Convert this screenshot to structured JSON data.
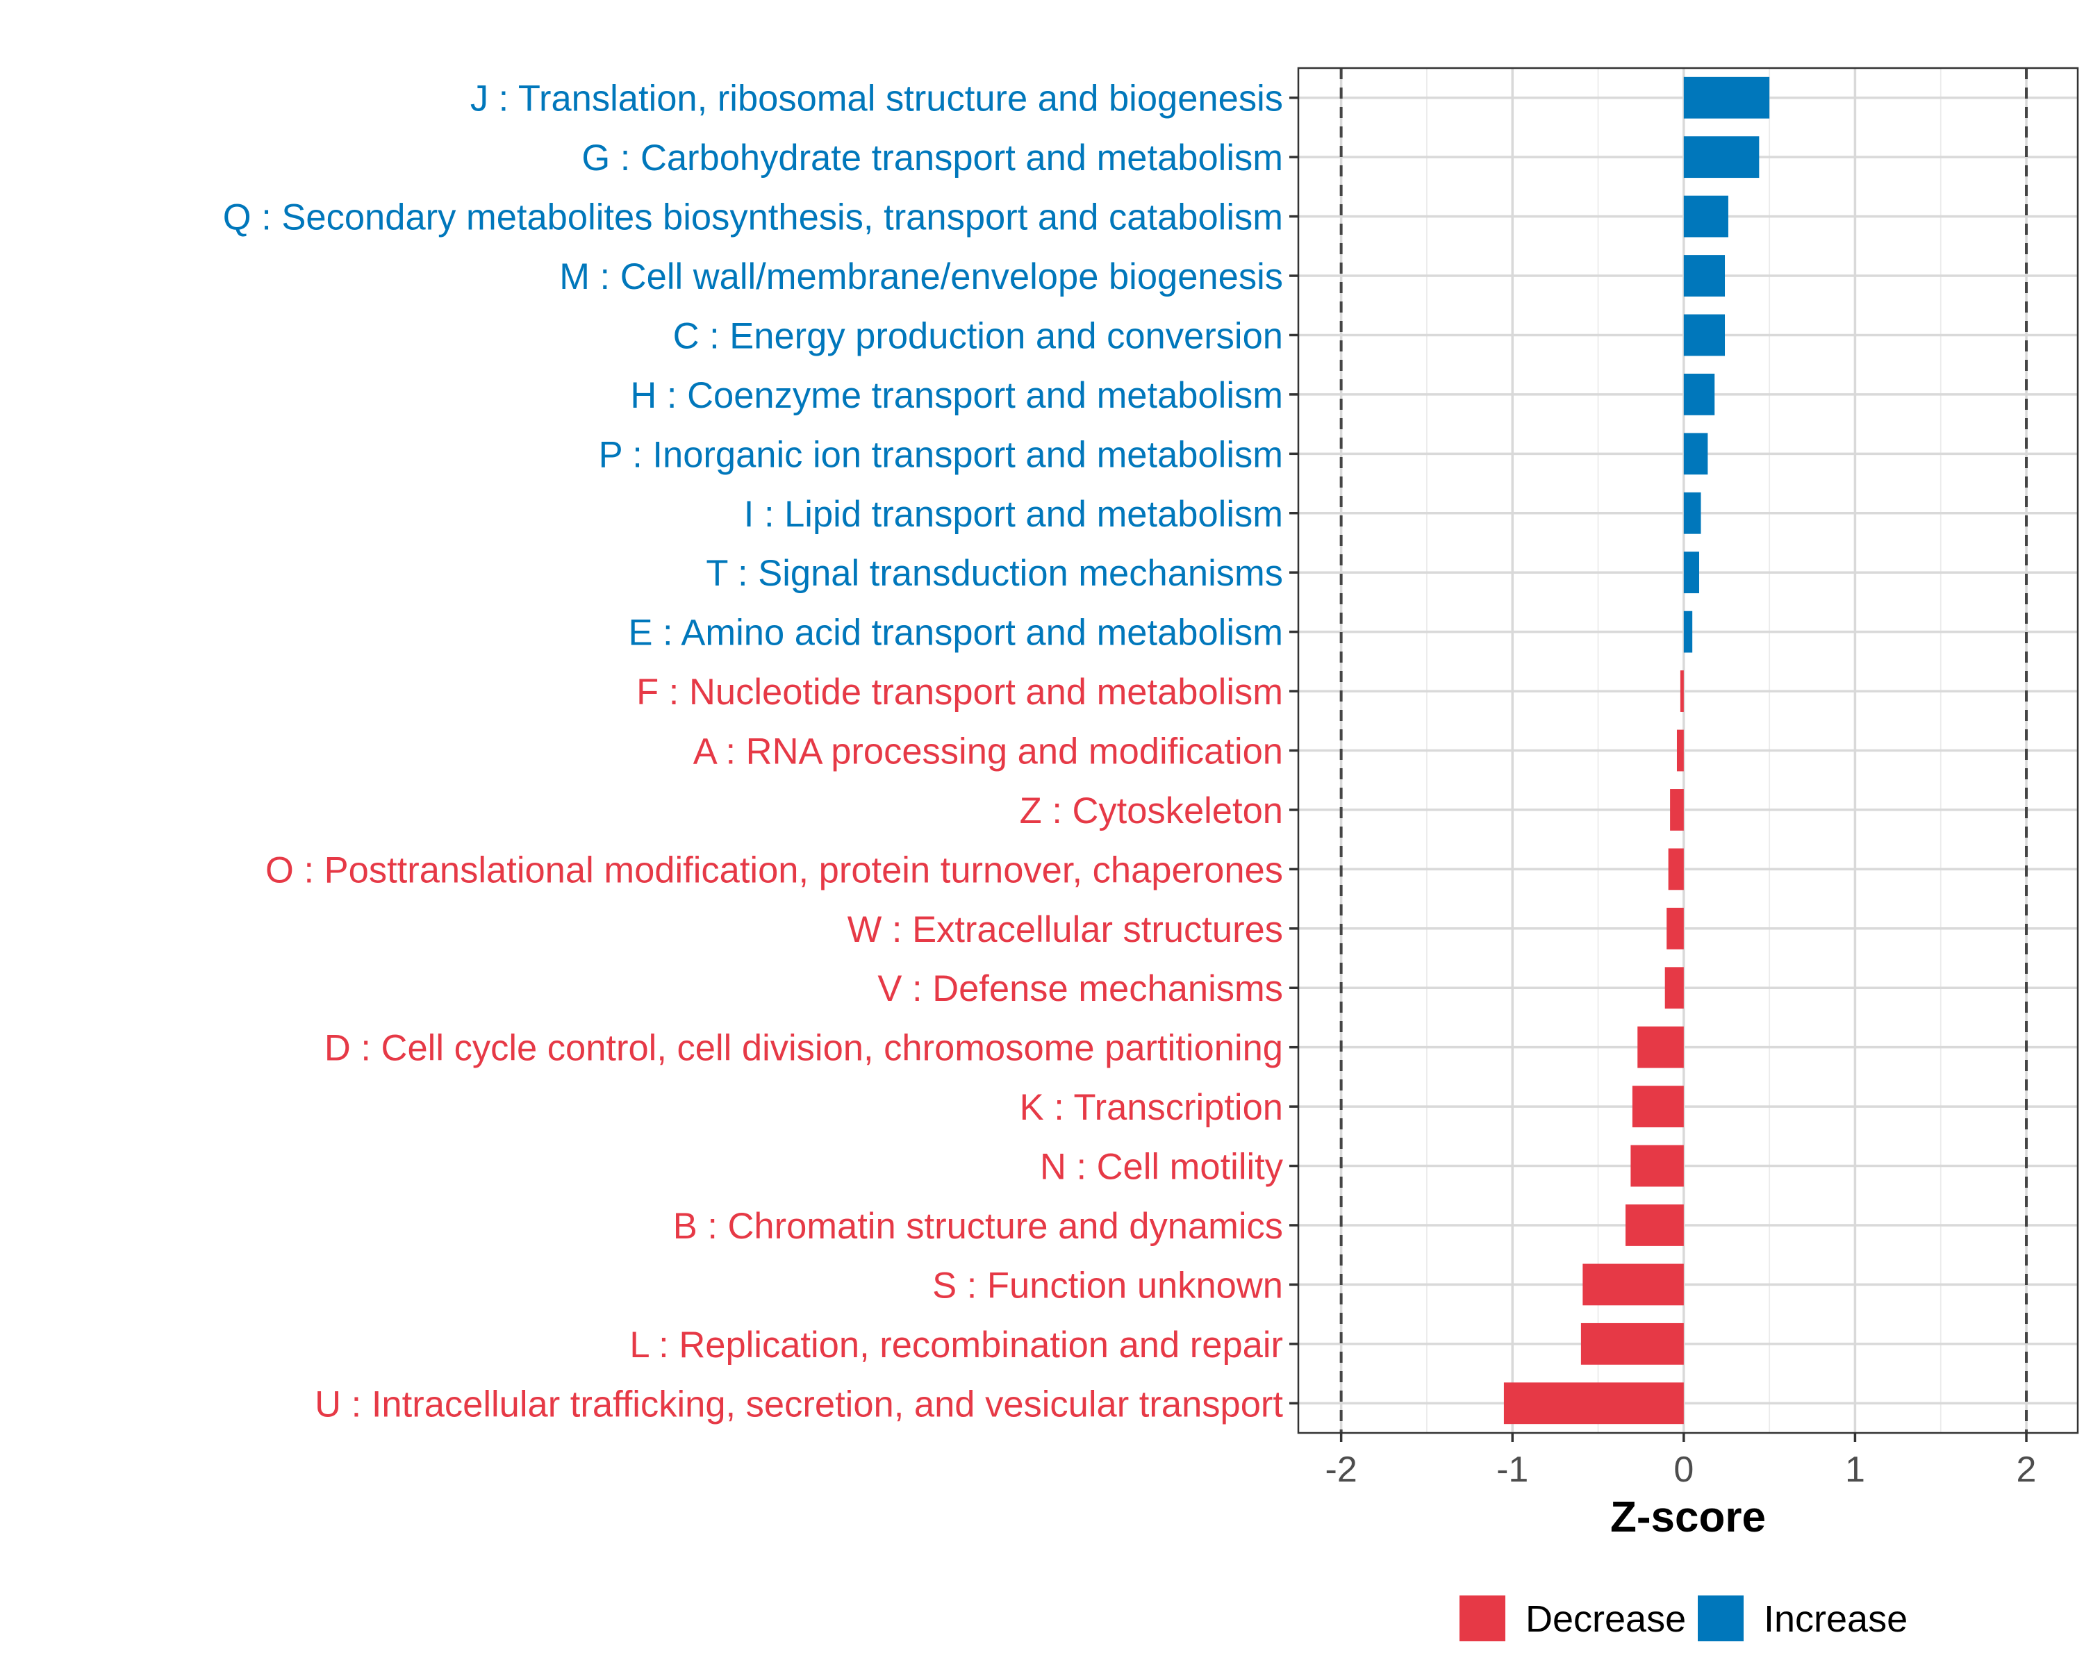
{
  "chart_data": {
    "type": "bar",
    "orientation": "horizontal",
    "xlabel": "Z-score",
    "xlim": [
      -2.25,
      2.3
    ],
    "xticks": [
      -2,
      -1,
      0,
      1,
      2
    ],
    "xtick_labels": [
      "-2",
      "-1",
      "0",
      "1",
      "2"
    ],
    "threshold_lines": [
      -2,
      2
    ],
    "grid": true,
    "colors": {
      "Decrease": "#E63946",
      "Increase": "#0077BB"
    },
    "categories": [
      "J : Translation, ribosomal structure and biogenesis",
      "G : Carbohydrate transport and metabolism",
      "Q : Secondary metabolites biosynthesis, transport and catabolism",
      "M : Cell wall/membrane/envelope biogenesis",
      "C : Energy production and conversion",
      "H : Coenzyme transport and metabolism",
      "P : Inorganic ion transport and metabolism",
      "I : Lipid transport and metabolism",
      "T : Signal transduction mechanisms",
      "E : Amino acid transport and metabolism",
      "F : Nucleotide transport and metabolism",
      "A : RNA processing and modification",
      "Z : Cytoskeleton",
      "O : Posttranslational modification, protein turnover, chaperones",
      "W : Extracellular structures",
      "V : Defense mechanisms",
      "D : Cell cycle control, cell division, chromosome partitioning",
      "K : Transcription",
      "N : Cell motility",
      "B : Chromatin structure and dynamics",
      "S : Function unknown",
      "L : Replication, recombination and repair",
      "U : Intracellular trafficking, secretion, and vesicular transport"
    ],
    "values": [
      0.5,
      0.44,
      0.26,
      0.24,
      0.24,
      0.18,
      0.14,
      0.1,
      0.09,
      0.05,
      -0.02,
      -0.04,
      -0.08,
      -0.09,
      -0.1,
      -0.11,
      -0.27,
      -0.3,
      -0.31,
      -0.34,
      -0.59,
      -0.6,
      -1.05
    ],
    "groups": [
      "Increase",
      "Increase",
      "Increase",
      "Increase",
      "Increase",
      "Increase",
      "Increase",
      "Increase",
      "Increase",
      "Increase",
      "Decrease",
      "Decrease",
      "Decrease",
      "Decrease",
      "Decrease",
      "Decrease",
      "Decrease",
      "Decrease",
      "Decrease",
      "Decrease",
      "Decrease",
      "Decrease",
      "Decrease"
    ],
    "legend": {
      "position": "bottom",
      "entries": [
        {
          "label": "Decrease",
          "color": "#E63946"
        },
        {
          "label": "Increase",
          "color": "#0077BB"
        }
      ]
    }
  }
}
